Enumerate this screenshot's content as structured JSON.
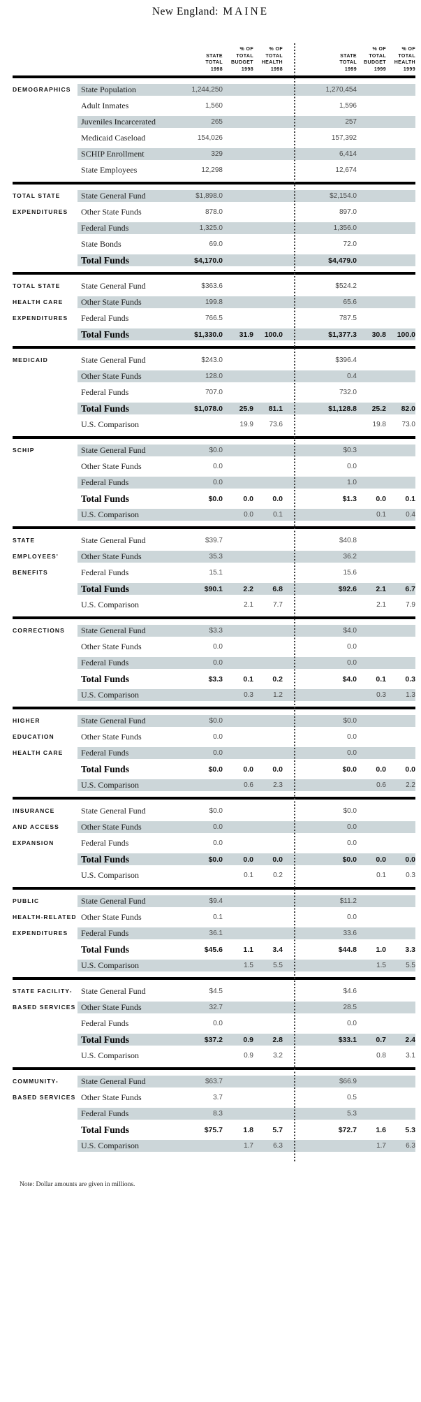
{
  "title": {
    "prefix": "New England: ",
    "state": "MAINE"
  },
  "note": "Note: Dollar amounts are given in millions.",
  "colors": {
    "shaded_row": "#ccd6d9",
    "rule": "#000000",
    "divider": "#3c3c3c"
  },
  "columns": [
    {
      "id": "v98",
      "lines": [
        "STATE",
        "TOTAL",
        "1998"
      ]
    },
    {
      "id": "b98",
      "lines": [
        "% OF",
        "TOTAL",
        "BUDGET",
        "1998"
      ]
    },
    {
      "id": "h98",
      "lines": [
        "% OF",
        "TOTAL",
        "HEALTH",
        "1998"
      ]
    },
    {
      "id": "v99",
      "lines": [
        "STATE",
        "TOTAL",
        "1999"
      ]
    },
    {
      "id": "b99",
      "lines": [
        "% OF",
        "TOTAL",
        "BUDGET",
        "1999"
      ]
    },
    {
      "id": "h99",
      "lines": [
        "% OF",
        "TOTAL",
        "HEALTH",
        "1999"
      ]
    }
  ],
  "sections": [
    {
      "id": "demographics",
      "label_lines": [
        "DEMOGRAPHICS"
      ],
      "rows": [
        {
          "label": "State Population",
          "v98": "1,244,250",
          "b98": "",
          "h98": "",
          "v99": "1,270,454",
          "b99": "",
          "h99": "",
          "shaded": true,
          "total": false
        },
        {
          "label": "Adult Inmates",
          "v98": "1,560",
          "b98": "",
          "h98": "",
          "v99": "1,596",
          "b99": "",
          "h99": "",
          "shaded": false,
          "total": false
        },
        {
          "label": "Juveniles Incarcerated",
          "v98": "265",
          "b98": "",
          "h98": "",
          "v99": "257",
          "b99": "",
          "h99": "",
          "shaded": true,
          "total": false
        },
        {
          "label": "Medicaid Caseload",
          "v98": "154,026",
          "b98": "",
          "h98": "",
          "v99": "157,392",
          "b99": "",
          "h99": "",
          "shaded": false,
          "total": false
        },
        {
          "label": "SCHIP Enrollment",
          "v98": "329",
          "b98": "",
          "h98": "",
          "v99": "6,414",
          "b99": "",
          "h99": "",
          "shaded": true,
          "total": false
        },
        {
          "label": "State Employees",
          "v98": "12,298",
          "b98": "",
          "h98": "",
          "v99": "12,674",
          "b99": "",
          "h99": "",
          "shaded": false,
          "total": false
        }
      ]
    },
    {
      "id": "total-state-expenditures",
      "label_lines": [
        "TOTAL STATE",
        "EXPENDITURES"
      ],
      "rows": [
        {
          "label": "State General Fund",
          "v98": "$1,898.0",
          "b98": "",
          "h98": "",
          "v99": "$2,154.0",
          "b99": "",
          "h99": "",
          "shaded": true,
          "total": false
        },
        {
          "label": "Other State Funds",
          "v98": "878.0",
          "b98": "",
          "h98": "",
          "v99": "897.0",
          "b99": "",
          "h99": "",
          "shaded": false,
          "total": false
        },
        {
          "label": "Federal Funds",
          "v98": "1,325.0",
          "b98": "",
          "h98": "",
          "v99": "1,356.0",
          "b99": "",
          "h99": "",
          "shaded": true,
          "total": false
        },
        {
          "label": "State Bonds",
          "v98": "69.0",
          "b98": "",
          "h98": "",
          "v99": "72.0",
          "b99": "",
          "h99": "",
          "shaded": false,
          "total": false
        },
        {
          "label": "Total Funds",
          "v98": "$4,170.0",
          "b98": "",
          "h98": "",
          "v99": "$4,479.0",
          "b99": "",
          "h99": "",
          "shaded": true,
          "total": true
        }
      ]
    },
    {
      "id": "total-state-health-care-expenditures",
      "label_lines": [
        "TOTAL STATE",
        "HEALTH CARE",
        "EXPENDITURES"
      ],
      "rows": [
        {
          "label": "State General Fund",
          "v98": "$363.6",
          "b98": "",
          "h98": "",
          "v99": "$524.2",
          "b99": "",
          "h99": "",
          "shaded": false,
          "total": false
        },
        {
          "label": "Other State Funds",
          "v98": "199.8",
          "b98": "",
          "h98": "",
          "v99": "65.6",
          "b99": "",
          "h99": "",
          "shaded": true,
          "total": false
        },
        {
          "label": "Federal Funds",
          "v98": "766.5",
          "b98": "",
          "h98": "",
          "v99": "787.5",
          "b99": "",
          "h99": "",
          "shaded": false,
          "total": false
        },
        {
          "label": "Total Funds",
          "v98": "$1,330.0",
          "b98": "31.9",
          "h98": "100.0",
          "v99": "$1,377.3",
          "b99": "30.8",
          "h99": "100.0",
          "shaded": true,
          "total": true
        }
      ]
    },
    {
      "id": "medicaid",
      "label_lines": [
        "MEDICAID"
      ],
      "rows": [
        {
          "label": "State General Fund",
          "v98": "$243.0",
          "b98": "",
          "h98": "",
          "v99": "$396.4",
          "b99": "",
          "h99": "",
          "shaded": false,
          "total": false
        },
        {
          "label": "Other State Funds",
          "v98": "128.0",
          "b98": "",
          "h98": "",
          "v99": "0.4",
          "b99": "",
          "h99": "",
          "shaded": true,
          "total": false
        },
        {
          "label": "Federal Funds",
          "v98": "707.0",
          "b98": "",
          "h98": "",
          "v99": "732.0",
          "b99": "",
          "h99": "",
          "shaded": false,
          "total": false
        },
        {
          "label": "Total Funds",
          "v98": "$1,078.0",
          "b98": "25.9",
          "h98": "81.1",
          "v99": "$1,128.8",
          "b99": "25.2",
          "h99": "82.0",
          "shaded": true,
          "total": true
        },
        {
          "label": "U.S. Comparison",
          "v98": "",
          "b98": "19.9",
          "h98": "73.6",
          "v99": "",
          "b99": "19.8",
          "h99": "73.0",
          "shaded": false,
          "total": false
        }
      ]
    },
    {
      "id": "schip",
      "label_lines": [
        "SCHIP"
      ],
      "rows": [
        {
          "label": "State General Fund",
          "v98": "$0.0",
          "b98": "",
          "h98": "",
          "v99": "$0.3",
          "b99": "",
          "h99": "",
          "shaded": true,
          "total": false
        },
        {
          "label": "Other State Funds",
          "v98": "0.0",
          "b98": "",
          "h98": "",
          "v99": "0.0",
          "b99": "",
          "h99": "",
          "shaded": false,
          "total": false
        },
        {
          "label": "Federal Funds",
          "v98": "0.0",
          "b98": "",
          "h98": "",
          "v99": "1.0",
          "b99": "",
          "h99": "",
          "shaded": true,
          "total": false
        },
        {
          "label": "Total Funds",
          "v98": "$0.0",
          "b98": "0.0",
          "h98": "0.0",
          "v99": "$1.3",
          "b99": "0.0",
          "h99": "0.1",
          "shaded": false,
          "total": true
        },
        {
          "label": "U.S. Comparison",
          "v98": "",
          "b98": "0.0",
          "h98": "0.1",
          "v99": "",
          "b99": "0.1",
          "h99": "0.4",
          "shaded": true,
          "total": false
        }
      ]
    },
    {
      "id": "state-employees-benefits",
      "label_lines": [
        "STATE",
        "EMPLOYEES'",
        "BENEFITS"
      ],
      "rows": [
        {
          "label": "State General Fund",
          "v98": "$39.7",
          "b98": "",
          "h98": "",
          "v99": "$40.8",
          "b99": "",
          "h99": "",
          "shaded": false,
          "total": false
        },
        {
          "label": "Other State Funds",
          "v98": "35.3",
          "b98": "",
          "h98": "",
          "v99": "36.2",
          "b99": "",
          "h99": "",
          "shaded": true,
          "total": false
        },
        {
          "label": "Federal Funds",
          "v98": "15.1",
          "b98": "",
          "h98": "",
          "v99": "15.6",
          "b99": "",
          "h99": "",
          "shaded": false,
          "total": false
        },
        {
          "label": "Total Funds",
          "v98": "$90.1",
          "b98": "2.2",
          "h98": "6.8",
          "v99": "$92.6",
          "b99": "2.1",
          "h99": "6.7",
          "shaded": true,
          "total": true
        },
        {
          "label": "U.S. Comparison",
          "v98": "",
          "b98": "2.1",
          "h98": "7.7",
          "v99": "",
          "b99": "2.1",
          "h99": "7.9",
          "shaded": false,
          "total": false
        }
      ]
    },
    {
      "id": "corrections",
      "label_lines": [
        "CORRECTIONS"
      ],
      "rows": [
        {
          "label": "State General Fund",
          "v98": "$3.3",
          "b98": "",
          "h98": "",
          "v99": "$4.0",
          "b99": "",
          "h99": "",
          "shaded": true,
          "total": false
        },
        {
          "label": "Other State Funds",
          "v98": "0.0",
          "b98": "",
          "h98": "",
          "v99": "0.0",
          "b99": "",
          "h99": "",
          "shaded": false,
          "total": false
        },
        {
          "label": "Federal Funds",
          "v98": "0.0",
          "b98": "",
          "h98": "",
          "v99": "0.0",
          "b99": "",
          "h99": "",
          "shaded": true,
          "total": false
        },
        {
          "label": "Total Funds",
          "v98": "$3.3",
          "b98": "0.1",
          "h98": "0.2",
          "v99": "$4.0",
          "b99": "0.1",
          "h99": "0.3",
          "shaded": false,
          "total": true
        },
        {
          "label": "U.S. Comparison",
          "v98": "",
          "b98": "0.3",
          "h98": "1.2",
          "v99": "",
          "b99": "0.3",
          "h99": "1.3",
          "shaded": true,
          "total": false
        }
      ]
    },
    {
      "id": "higher-education-health-care",
      "label_lines": [
        "HIGHER",
        "EDUCATION",
        "HEALTH CARE"
      ],
      "rows": [
        {
          "label": "State General Fund",
          "v98": "$0.0",
          "b98": "",
          "h98": "",
          "v99": "$0.0",
          "b99": "",
          "h99": "",
          "shaded": true,
          "total": false
        },
        {
          "label": "Other State Funds",
          "v98": "0.0",
          "b98": "",
          "h98": "",
          "v99": "0.0",
          "b99": "",
          "h99": "",
          "shaded": false,
          "total": false
        },
        {
          "label": "Federal Funds",
          "v98": "0.0",
          "b98": "",
          "h98": "",
          "v99": "0.0",
          "b99": "",
          "h99": "",
          "shaded": true,
          "total": false
        },
        {
          "label": "Total Funds",
          "v98": "$0.0",
          "b98": "0.0",
          "h98": "0.0",
          "v99": "$0.0",
          "b99": "0.0",
          "h99": "0.0",
          "shaded": false,
          "total": true
        },
        {
          "label": "U.S. Comparison",
          "v98": "",
          "b98": "0.6",
          "h98": "2.3",
          "v99": "",
          "b99": "0.6",
          "h99": "2.2",
          "shaded": true,
          "total": false
        }
      ]
    },
    {
      "id": "insurance-and-access-expansion",
      "label_lines": [
        "INSURANCE",
        "AND ACCESS",
        "EXPANSION"
      ],
      "rows": [
        {
          "label": "State General Fund",
          "v98": "$0.0",
          "b98": "",
          "h98": "",
          "v99": "$0.0",
          "b99": "",
          "h99": "",
          "shaded": false,
          "total": false
        },
        {
          "label": "Other State Funds",
          "v98": "0.0",
          "b98": "",
          "h98": "",
          "v99": "0.0",
          "b99": "",
          "h99": "",
          "shaded": true,
          "total": false
        },
        {
          "label": "Federal Funds",
          "v98": "0.0",
          "b98": "",
          "h98": "",
          "v99": "0.0",
          "b99": "",
          "h99": "",
          "shaded": false,
          "total": false
        },
        {
          "label": "Total Funds",
          "v98": "$0.0",
          "b98": "0.0",
          "h98": "0.0",
          "v99": "$0.0",
          "b99": "0.0",
          "h99": "0.0",
          "shaded": true,
          "total": true
        },
        {
          "label": "U.S. Comparison",
          "v98": "",
          "b98": "0.1",
          "h98": "0.2",
          "v99": "",
          "b99": "0.1",
          "h99": "0.3",
          "shaded": false,
          "total": false
        }
      ]
    },
    {
      "id": "public-health-related-expenditures",
      "label_lines": [
        "PUBLIC",
        "HEALTH-RELATED",
        "EXPENDITURES"
      ],
      "rows": [
        {
          "label": "State General Fund",
          "v98": "$9.4",
          "b98": "",
          "h98": "",
          "v99": "$11.2",
          "b99": "",
          "h99": "",
          "shaded": true,
          "total": false
        },
        {
          "label": "Other State Funds",
          "v98": "0.1",
          "b98": "",
          "h98": "",
          "v99": "0.0",
          "b99": "",
          "h99": "",
          "shaded": false,
          "total": false
        },
        {
          "label": "Federal Funds",
          "v98": "36.1",
          "b98": "",
          "h98": "",
          "v99": "33.6",
          "b99": "",
          "h99": "",
          "shaded": true,
          "total": false
        },
        {
          "label": "Total Funds",
          "v98": "$45.6",
          "b98": "1.1",
          "h98": "3.4",
          "v99": "$44.8",
          "b99": "1.0",
          "h99": "3.3",
          "shaded": false,
          "total": true
        },
        {
          "label": "U.S. Comparison",
          "v98": "",
          "b98": "1.5",
          "h98": "5.5",
          "v99": "",
          "b99": "1.5",
          "h99": "5.5",
          "shaded": true,
          "total": false
        }
      ]
    },
    {
      "id": "state-facility-based-services",
      "label_lines": [
        "STATE FACILITY-",
        "BASED SERVICES"
      ],
      "rows": [
        {
          "label": "State General Fund",
          "v98": "$4.5",
          "b98": "",
          "h98": "",
          "v99": "$4.6",
          "b99": "",
          "h99": "",
          "shaded": false,
          "total": false
        },
        {
          "label": "Other State Funds",
          "v98": "32.7",
          "b98": "",
          "h98": "",
          "v99": "28.5",
          "b99": "",
          "h99": "",
          "shaded": true,
          "total": false
        },
        {
          "label": "Federal Funds",
          "v98": "0.0",
          "b98": "",
          "h98": "",
          "v99": "0.0",
          "b99": "",
          "h99": "",
          "shaded": false,
          "total": false
        },
        {
          "label": "Total Funds",
          "v98": "$37.2",
          "b98": "0.9",
          "h98": "2.8",
          "v99": "$33.1",
          "b99": "0.7",
          "h99": "2.4",
          "shaded": true,
          "total": true
        },
        {
          "label": "U.S. Comparison",
          "v98": "",
          "b98": "0.9",
          "h98": "3.2",
          "v99": "",
          "b99": "0.8",
          "h99": "3.1",
          "shaded": false,
          "total": false
        }
      ]
    },
    {
      "id": "community-based-services",
      "label_lines": [
        "COMMUNITY-",
        "BASED SERVICES"
      ],
      "rows": [
        {
          "label": "State General Fund",
          "v98": "$63.7",
          "b98": "",
          "h98": "",
          "v99": "$66.9",
          "b99": "",
          "h99": "",
          "shaded": true,
          "total": false
        },
        {
          "label": "Other State Funds",
          "v98": "3.7",
          "b98": "",
          "h98": "",
          "v99": "0.5",
          "b99": "",
          "h99": "",
          "shaded": false,
          "total": false
        },
        {
          "label": "Federal Funds",
          "v98": "8.3",
          "b98": "",
          "h98": "",
          "v99": "5.3",
          "b99": "",
          "h99": "",
          "shaded": true,
          "total": false
        },
        {
          "label": "Total Funds",
          "v98": "$75.7",
          "b98": "1.8",
          "h98": "5.7",
          "v99": "$72.7",
          "b99": "1.6",
          "h99": "5.3",
          "shaded": false,
          "total": true
        },
        {
          "label": "U.S. Comparison",
          "v98": "",
          "b98": "1.7",
          "h98": "6.3",
          "v99": "",
          "b99": "1.7",
          "h99": "6.3",
          "shaded": true,
          "total": false
        }
      ]
    }
  ]
}
